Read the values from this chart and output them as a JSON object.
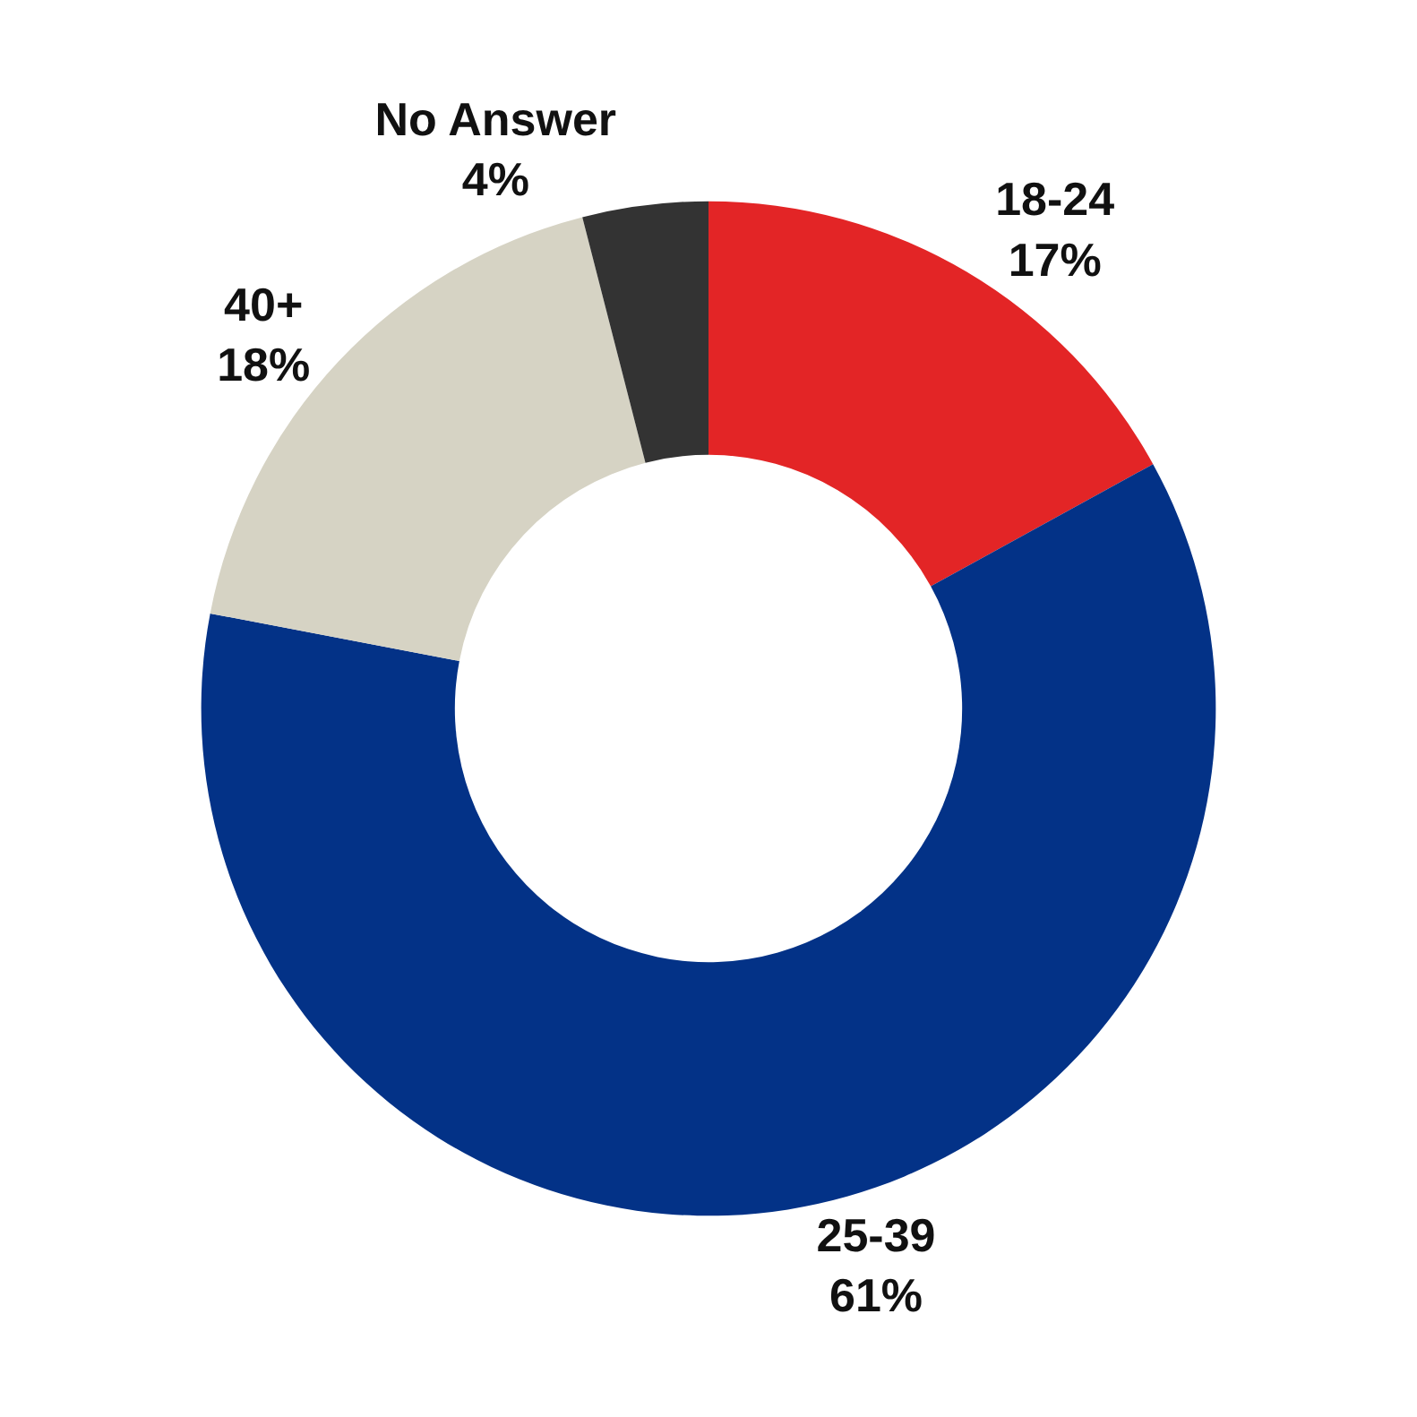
{
  "chart_data": {
    "type": "donut",
    "categories": [
      "18-24",
      "25-39",
      "40+",
      "No Answer"
    ],
    "values": [
      17,
      61,
      18,
      4
    ],
    "value_labels": [
      "17%",
      "61%",
      "18%",
      "4%"
    ],
    "colors": [
      "#e32526",
      "#033287",
      "#d6d3c4",
      "#333333"
    ],
    "legend": false
  }
}
